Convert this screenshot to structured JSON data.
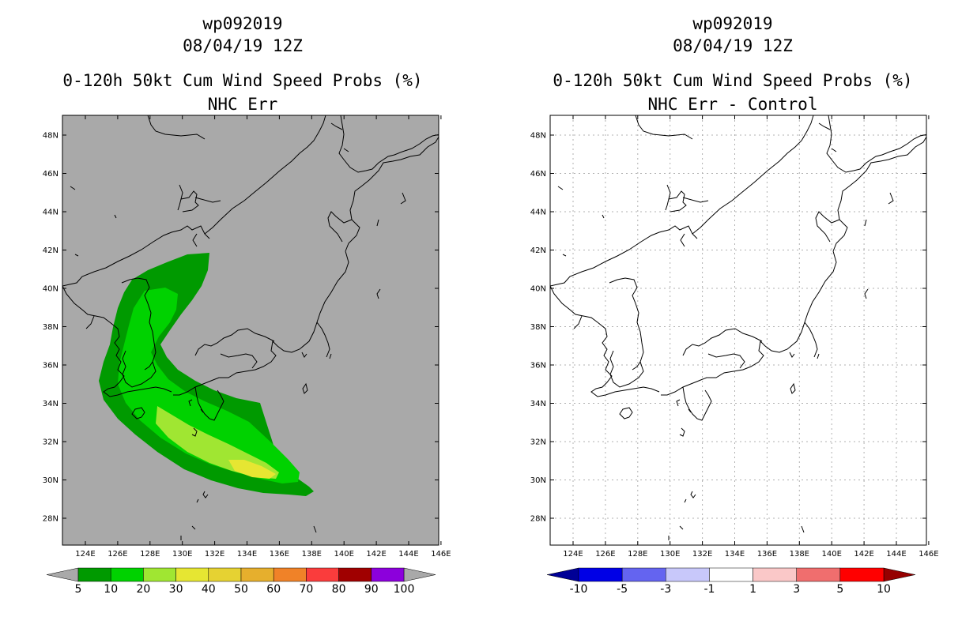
{
  "left_panel": {
    "title_line1": "wp092019",
    "title_line2": "08/04/19 12Z",
    "title_line3": "0-120h 50kt Cum Wind Speed Probs (%)",
    "title_line4": "NHC Err",
    "background_color": "#a9a9a9",
    "colorbar": {
      "labels": [
        "5",
        "10",
        "20",
        "30",
        "40",
        "50",
        "60",
        "70",
        "80",
        "90",
        "100"
      ],
      "colors": [
        "#009a00",
        "#00d200",
        "#a0e632",
        "#e6e632",
        "#e6d232",
        "#e6af2d",
        "#f08228",
        "#fa3c3c",
        "#a00000",
        "#8c00dc"
      ],
      "under_color": "#a9a9a9",
      "over_color": "#a9a9a9"
    }
  },
  "right_panel": {
    "title_line1": "wp092019",
    "title_line2": "08/04/19 12Z",
    "title_line3": "0-120h 50kt Cum Wind Speed Probs (%)",
    "title_line4": "NHC Err - Control",
    "background_color": "#ffffff",
    "colorbar": {
      "labels": [
        "-10",
        "-5",
        "-3",
        "-1",
        "1",
        "3",
        "5",
        "10"
      ],
      "colors": [
        "#0000e6",
        "#6464f0",
        "#c8c8fa",
        "#ffffff",
        "#fac8c8",
        "#f06e6e",
        "#ff0000"
      ],
      "under_color": "#000096",
      "over_color": "#960000"
    }
  },
  "map": {
    "lon_ticks": [
      "124E",
      "126E",
      "128E",
      "130E",
      "132E",
      "134E",
      "136E",
      "138E",
      "140E",
      "142E",
      "144E",
      "146E"
    ],
    "lat_ticks": [
      "48N",
      "46N",
      "44N",
      "42N",
      "40N",
      "38N",
      "36N",
      "34N",
      "32N",
      "30N",
      "28N"
    ]
  },
  "probability_bands": [
    {
      "level": "5",
      "color": "#009a00"
    },
    {
      "level": "10",
      "color": "#00d200"
    },
    {
      "level": "20",
      "color": "#a0e632"
    },
    {
      "level": "30",
      "color": "#e6e632"
    }
  ]
}
